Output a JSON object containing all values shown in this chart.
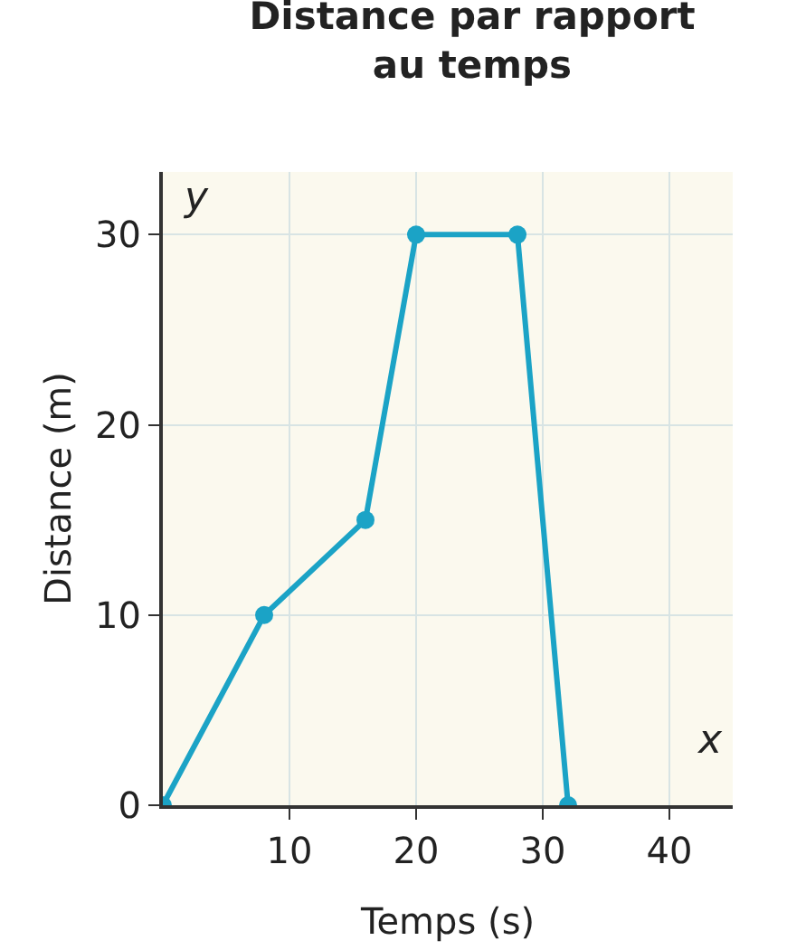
{
  "chart_data": {
    "type": "line",
    "title": "Distance par rapport au temps",
    "xlabel": "Temps (s)",
    "ylabel": "Distance (m)",
    "annotations": [
      "x",
      "y"
    ],
    "x": [
      0,
      8,
      16,
      20,
      28,
      32
    ],
    "series": [
      {
        "color": "#1ba3c6",
        "values": [
          0,
          10,
          15,
          30,
          30,
          0
        ]
      }
    ],
    "xlim": [
      0,
      45
    ],
    "ylim": [
      0,
      33.3
    ],
    "xticks": [
      10,
      20,
      30,
      40
    ],
    "yticks": [
      0,
      10,
      20,
      30
    ],
    "grid": true,
    "marker": "circle",
    "line_style": "solid"
  }
}
